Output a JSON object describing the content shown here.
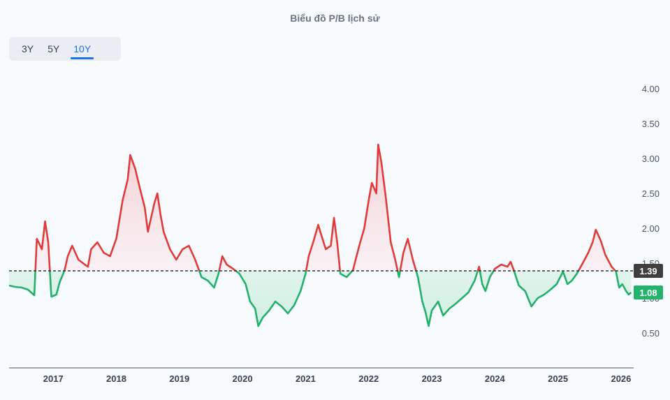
{
  "title": "Biểu đồ P/B lịch sử",
  "range_tabs": [
    {
      "label": "3Y",
      "active": false
    },
    {
      "label": "5Y",
      "active": false
    },
    {
      "label": "10Y",
      "active": true
    }
  ],
  "chart_data": {
    "type": "line",
    "title": "Biểu đồ P/B lịch sử",
    "xlabel": "",
    "ylabel": "",
    "x_ticks": [
      "2017",
      "2018",
      "2019",
      "2020",
      "2021",
      "2022",
      "2023",
      "2024",
      "2025",
      "2026"
    ],
    "y_ticks": [
      "0.50",
      "1.00",
      "1.50",
      "2.00",
      "2.50",
      "3.00",
      "3.50",
      "4.00"
    ],
    "ylim": [
      0.0,
      4.0
    ],
    "xlim": [
      2016.3,
      2026.2
    ],
    "reference_line": {
      "value": 1.39,
      "label": "1.39",
      "style": "dashed",
      "color": "#333333"
    },
    "current_value": {
      "value": 1.08,
      "label": "1.08",
      "color": "#23b36a"
    },
    "colors": {
      "above": "#e03b3b",
      "below": "#22b06b",
      "above_fill": "#f7dadd",
      "below_fill": "#d4f1e2"
    },
    "grid": false,
    "series": [
      {
        "points": [
          [
            2016.3,
            1.18
          ],
          [
            2016.4,
            1.16
          ],
          [
            2016.5,
            1.15
          ],
          [
            2016.6,
            1.12
          ],
          [
            2016.7,
            1.04
          ],
          [
            2016.74,
            1.85
          ],
          [
            2016.82,
            1.7
          ],
          [
            2016.87,
            2.1
          ],
          [
            2016.92,
            1.8
          ],
          [
            2016.97,
            1.02
          ],
          [
            2017.05,
            1.05
          ],
          [
            2017.1,
            1.22
          ],
          [
            2017.18,
            1.4
          ],
          [
            2017.23,
            1.6
          ],
          [
            2017.3,
            1.75
          ],
          [
            2017.4,
            1.55
          ],
          [
            2017.5,
            1.48
          ],
          [
            2017.55,
            1.45
          ],
          [
            2017.6,
            1.7
          ],
          [
            2017.7,
            1.8
          ],
          [
            2017.8,
            1.65
          ],
          [
            2017.9,
            1.6
          ],
          [
            2018.0,
            1.85
          ],
          [
            2018.1,
            2.4
          ],
          [
            2018.18,
            2.7
          ],
          [
            2018.22,
            3.05
          ],
          [
            2018.3,
            2.85
          ],
          [
            2018.38,
            2.55
          ],
          [
            2018.45,
            2.3
          ],
          [
            2018.5,
            1.95
          ],
          [
            2018.55,
            2.15
          ],
          [
            2018.6,
            2.35
          ],
          [
            2018.65,
            2.5
          ],
          [
            2018.7,
            2.2
          ],
          [
            2018.75,
            1.95
          ],
          [
            2018.85,
            1.7
          ],
          [
            2018.95,
            1.55
          ],
          [
            2019.05,
            1.7
          ],
          [
            2019.15,
            1.75
          ],
          [
            2019.25,
            1.55
          ],
          [
            2019.35,
            1.3
          ],
          [
            2019.45,
            1.25
          ],
          [
            2019.55,
            1.15
          ],
          [
            2019.62,
            1.35
          ],
          [
            2019.68,
            1.6
          ],
          [
            2019.75,
            1.48
          ],
          [
            2019.85,
            1.42
          ],
          [
            2019.95,
            1.35
          ],
          [
            2020.05,
            1.2
          ],
          [
            2020.12,
            0.95
          ],
          [
            2020.2,
            0.85
          ],
          [
            2020.25,
            0.6
          ],
          [
            2020.32,
            0.72
          ],
          [
            2020.42,
            0.82
          ],
          [
            2020.52,
            0.95
          ],
          [
            2020.62,
            0.88
          ],
          [
            2020.72,
            0.78
          ],
          [
            2020.82,
            0.9
          ],
          [
            2020.92,
            1.1
          ],
          [
            2021.0,
            1.35
          ],
          [
            2021.05,
            1.6
          ],
          [
            2021.12,
            1.8
          ],
          [
            2021.2,
            2.05
          ],
          [
            2021.25,
            1.9
          ],
          [
            2021.32,
            1.7
          ],
          [
            2021.4,
            1.75
          ],
          [
            2021.45,
            2.15
          ],
          [
            2021.5,
            1.8
          ],
          [
            2021.55,
            1.35
          ],
          [
            2021.65,
            1.3
          ],
          [
            2021.75,
            1.4
          ],
          [
            2021.85,
            1.75
          ],
          [
            2021.93,
            2.0
          ],
          [
            2022.0,
            2.4
          ],
          [
            2022.05,
            2.65
          ],
          [
            2022.12,
            2.5
          ],
          [
            2022.15,
            3.2
          ],
          [
            2022.2,
            2.95
          ],
          [
            2022.27,
            2.45
          ],
          [
            2022.35,
            1.8
          ],
          [
            2022.42,
            1.55
          ],
          [
            2022.48,
            1.3
          ],
          [
            2022.55,
            1.65
          ],
          [
            2022.62,
            1.85
          ],
          [
            2022.7,
            1.55
          ],
          [
            2022.78,
            1.3
          ],
          [
            2022.85,
            0.95
          ],
          [
            2022.9,
            0.8
          ],
          [
            2022.95,
            0.6
          ],
          [
            2023.0,
            0.82
          ],
          [
            2023.1,
            0.95
          ],
          [
            2023.18,
            0.75
          ],
          [
            2023.28,
            0.85
          ],
          [
            2023.38,
            0.92
          ],
          [
            2023.48,
            1.0
          ],
          [
            2023.58,
            1.08
          ],
          [
            2023.68,
            1.25
          ],
          [
            2023.75,
            1.45
          ],
          [
            2023.8,
            1.2
          ],
          [
            2023.85,
            1.1
          ],
          [
            2023.92,
            1.3
          ],
          [
            2024.0,
            1.42
          ],
          [
            2024.1,
            1.48
          ],
          [
            2024.2,
            1.45
          ],
          [
            2024.25,
            1.52
          ],
          [
            2024.3,
            1.4
          ],
          [
            2024.38,
            1.18
          ],
          [
            2024.48,
            1.1
          ],
          [
            2024.58,
            0.88
          ],
          [
            2024.68,
            1.0
          ],
          [
            2024.78,
            1.05
          ],
          [
            2024.88,
            1.12
          ],
          [
            2024.98,
            1.2
          ],
          [
            2025.08,
            1.38
          ],
          [
            2025.15,
            1.2
          ],
          [
            2025.22,
            1.25
          ],
          [
            2025.3,
            1.35
          ],
          [
            2025.38,
            1.48
          ],
          [
            2025.48,
            1.65
          ],
          [
            2025.55,
            1.8
          ],
          [
            2025.6,
            1.98
          ],
          [
            2025.68,
            1.82
          ],
          [
            2025.75,
            1.62
          ],
          [
            2025.85,
            1.45
          ],
          [
            2025.92,
            1.38
          ],
          [
            2025.97,
            1.15
          ],
          [
            2026.02,
            1.2
          ],
          [
            2026.08,
            1.1
          ],
          [
            2026.12,
            1.05
          ],
          [
            2026.16,
            1.08
          ]
        ]
      }
    ]
  }
}
